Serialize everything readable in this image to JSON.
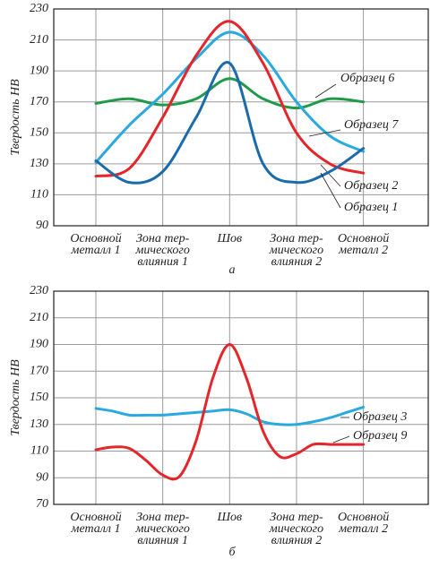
{
  "chart_data": [
    {
      "type": "line",
      "subtitle": "а",
      "ylabel": "Твердость HB",
      "x": [
        0,
        0.5,
        1,
        1.5,
        2,
        2.5,
        3,
        3.5,
        4
      ],
      "xlim": [
        -0.63,
        4.97
      ],
      "xticks": [
        {
          "value": 0,
          "label": "Основной\nметалл 1"
        },
        {
          "value": 1,
          "label": "Зона тер-\nмического\nвлияния 1"
        },
        {
          "value": 2,
          "label": "Шов"
        },
        {
          "value": 3,
          "label": "Зона тер-\nмического\nвлияния 2"
        },
        {
          "value": 4,
          "label": "Основной\nметалл 2"
        }
      ],
      "ylim": [
        90,
        230
      ],
      "yticks": [
        90,
        110,
        130,
        150,
        170,
        190,
        210,
        230
      ],
      "grid": true,
      "series": [
        {
          "name": "Образец 6",
          "color": "#1f9a48",
          "values": [
            169,
            172,
            168,
            172,
            185,
            172,
            166,
            172,
            170
          ]
        },
        {
          "name": "Образец 7",
          "color": "#2aa9e0",
          "values": [
            131,
            155,
            175,
            198,
            215,
            200,
            170,
            148,
            138
          ]
        },
        {
          "name": "Образец 2",
          "color": "#e42529",
          "values": [
            122,
            127,
            160,
            200,
            222,
            195,
            150,
            130,
            124
          ]
        },
        {
          "name": "Образец 1",
          "color": "#1b6aac",
          "values": [
            132,
            118,
            125,
            160,
            195,
            130,
            118,
            125,
            140
          ]
        }
      ]
    },
    {
      "type": "line",
      "subtitle": "б",
      "ylabel": "Твердость HB",
      "x": [
        0,
        0.25,
        0.5,
        0.75,
        1,
        1.25,
        1.5,
        1.75,
        2,
        2.25,
        2.5,
        2.75,
        3,
        3.25,
        3.5,
        3.75,
        4
      ],
      "xlim": [
        -0.63,
        4.97
      ],
      "xticks": [
        {
          "value": 0,
          "label": "Основной\nметалл 1"
        },
        {
          "value": 1,
          "label": "Зона тер-\nмического\nвлияния 1"
        },
        {
          "value": 2,
          "label": "Шов"
        },
        {
          "value": 3,
          "label": "Зона тер-\nмического\nвлияния 2"
        },
        {
          "value": 4,
          "label": "Основной\nметалл 2"
        }
      ],
      "ylim": [
        70,
        230
      ],
      "yticks": [
        70,
        90,
        110,
        130,
        150,
        170,
        190,
        210,
        230
      ],
      "grid": true,
      "series": [
        {
          "name": "Образец 3",
          "color": "#2aa9e0",
          "values": [
            142,
            140,
            137,
            137,
            137,
            138,
            139,
            140,
            141,
            138,
            132,
            130,
            130,
            132,
            135,
            139,
            143
          ]
        },
        {
          "name": "Образец 9",
          "color": "#e42529",
          "values": [
            111,
            113,
            112,
            103,
            92,
            91,
            118,
            165,
            190,
            165,
            125,
            106,
            108,
            115,
            115,
            115,
            115
          ]
        }
      ]
    }
  ]
}
